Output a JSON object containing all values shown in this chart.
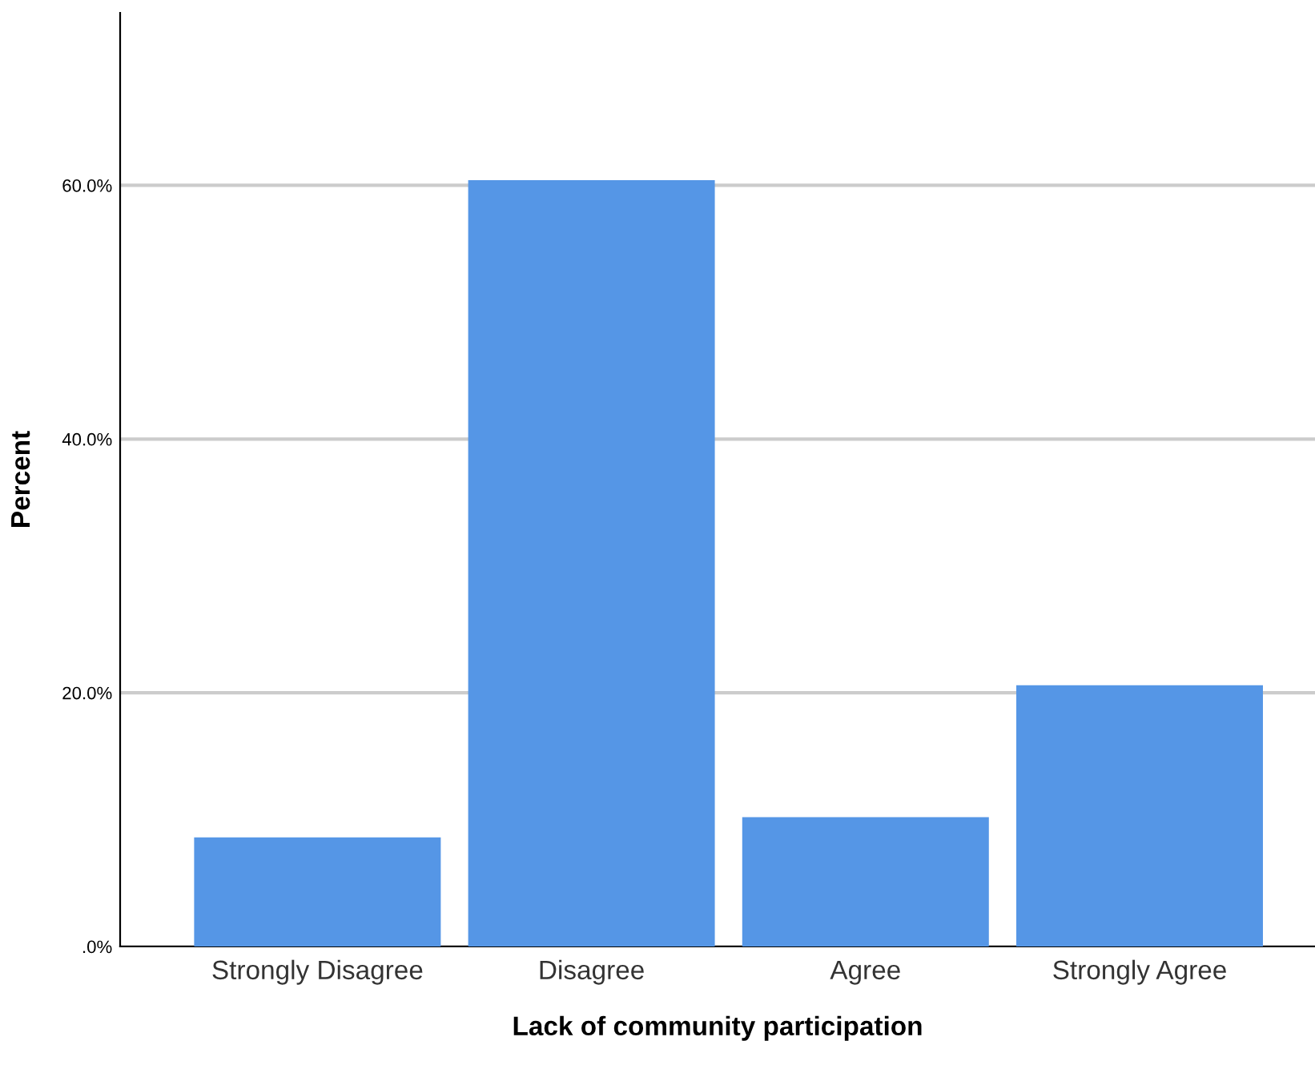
{
  "chart_data": {
    "type": "bar",
    "xlabel": "Lack of community participation",
    "ylabel": "Percent",
    "categories": [
      "Strongly Disagree",
      "Disagree",
      "Agree",
      "Strongly Agree"
    ],
    "values": [
      8.6,
      60.4,
      10.2,
      20.6
    ],
    "color": "#5596e6",
    "ylim": [
      0,
      73.6
    ],
    "yticks": [
      {
        "value": 0,
        "label": ".0%"
      },
      {
        "value": 20,
        "label": "20.0%"
      },
      {
        "value": 40,
        "label": "40.0%"
      },
      {
        "value": 60,
        "label": "60.0%"
      }
    ],
    "grid": "y"
  }
}
